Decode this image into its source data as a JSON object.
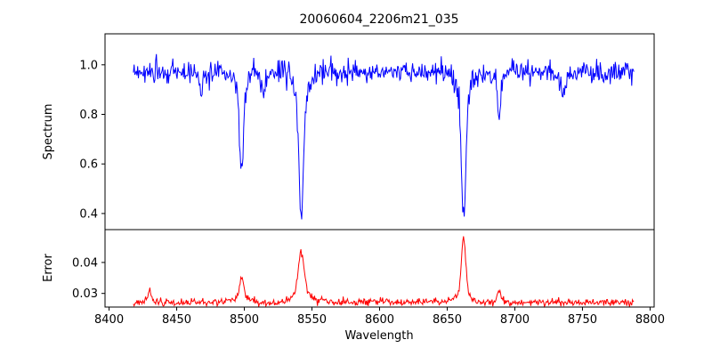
{
  "colors": {
    "background": "#ffffff",
    "axis": "#000000",
    "spectrum_line": "#0000ff",
    "error_line": "#ff0000"
  },
  "chart_data": {
    "type": "line",
    "title": "20060604_2206m21_035",
    "xlabel": "Wavelength",
    "grid": false,
    "legend": "none",
    "xlim": [
      8397,
      8803
    ],
    "xticks": [
      8400,
      8450,
      8500,
      8550,
      8600,
      8650,
      8700,
      8750,
      8800
    ],
    "xtick_labels": [
      "8400",
      "8450",
      "8500",
      "8550",
      "8600",
      "8650",
      "8700",
      "8750",
      "8800"
    ],
    "x_data_range": [
      8418,
      8788
    ],
    "n_points": 700,
    "seed": 20060604,
    "panels": [
      {
        "name": "spectrum",
        "ylabel": "Spectrum",
        "color": "#0000ff",
        "ylim": [
          0.335,
          1.125
        ],
        "yticks": [
          0.4,
          0.6,
          0.8,
          1.0
        ],
        "ytick_labels": [
          "0.4",
          "0.6",
          "0.8",
          "1.0"
        ],
        "baseline": 0.97,
        "noise_sigma": 0.024,
        "lines": [
          {
            "center": 8498.0,
            "depth": 0.41,
            "sigma": 1.3
          },
          {
            "center": 8542.1,
            "depth": 0.57,
            "sigma": 1.6
          },
          {
            "center": 8662.1,
            "depth": 0.62,
            "sigma": 1.4
          },
          {
            "center": 8468.0,
            "depth": 0.1,
            "sigma": 1.0
          },
          {
            "center": 8514.0,
            "depth": 0.12,
            "sigma": 1.0
          },
          {
            "center": 8688.5,
            "depth": 0.2,
            "sigma": 1.1
          },
          {
            "center": 8736.0,
            "depth": 0.1,
            "sigma": 1.0
          }
        ]
      },
      {
        "name": "error",
        "ylabel": "Error",
        "color": "#ff0000",
        "ylim": [
          0.0256,
          0.0506
        ],
        "yticks": [
          0.03,
          0.04
        ],
        "ytick_labels": [
          "0.03",
          "0.04"
        ],
        "baseline": 0.0272,
        "noise_sigma": 0.0006,
        "peaks": [
          {
            "center": 8430.0,
            "height": 0.004,
            "sigma": 1.2
          },
          {
            "center": 8498.0,
            "height": 0.008,
            "sigma": 1.6
          },
          {
            "center": 8542.1,
            "height": 0.0165,
            "sigma": 2.0
          },
          {
            "center": 8662.1,
            "height": 0.021,
            "sigma": 1.5
          },
          {
            "center": 8688.5,
            "height": 0.0035,
            "sigma": 1.2
          }
        ]
      }
    ]
  }
}
